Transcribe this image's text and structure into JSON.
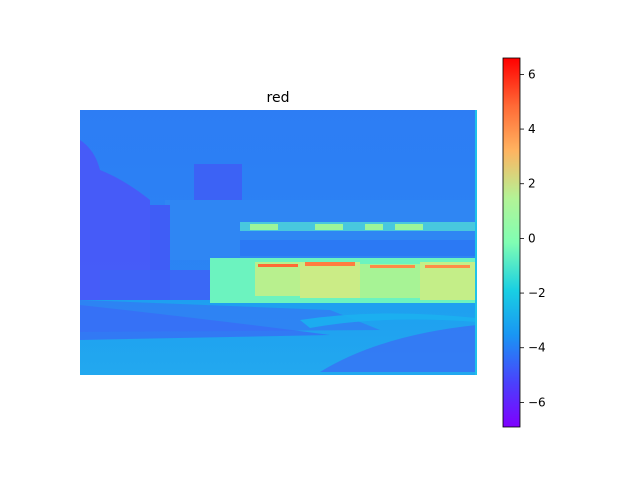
{
  "chart_data": [
    {
      "type": "heatmap",
      "title": "red",
      "colormap": "rainbow",
      "colorbar": {
        "range": [
          -6.9,
          6.6
        ],
        "ticks": [
          -6,
          -4,
          -2,
          0,
          2,
          4,
          6
        ],
        "tick_labels": [
          "−6",
          "−4",
          "−2",
          "0",
          "2",
          "4",
          "6"
        ]
      },
      "axes_visible": false
    }
  ]
}
